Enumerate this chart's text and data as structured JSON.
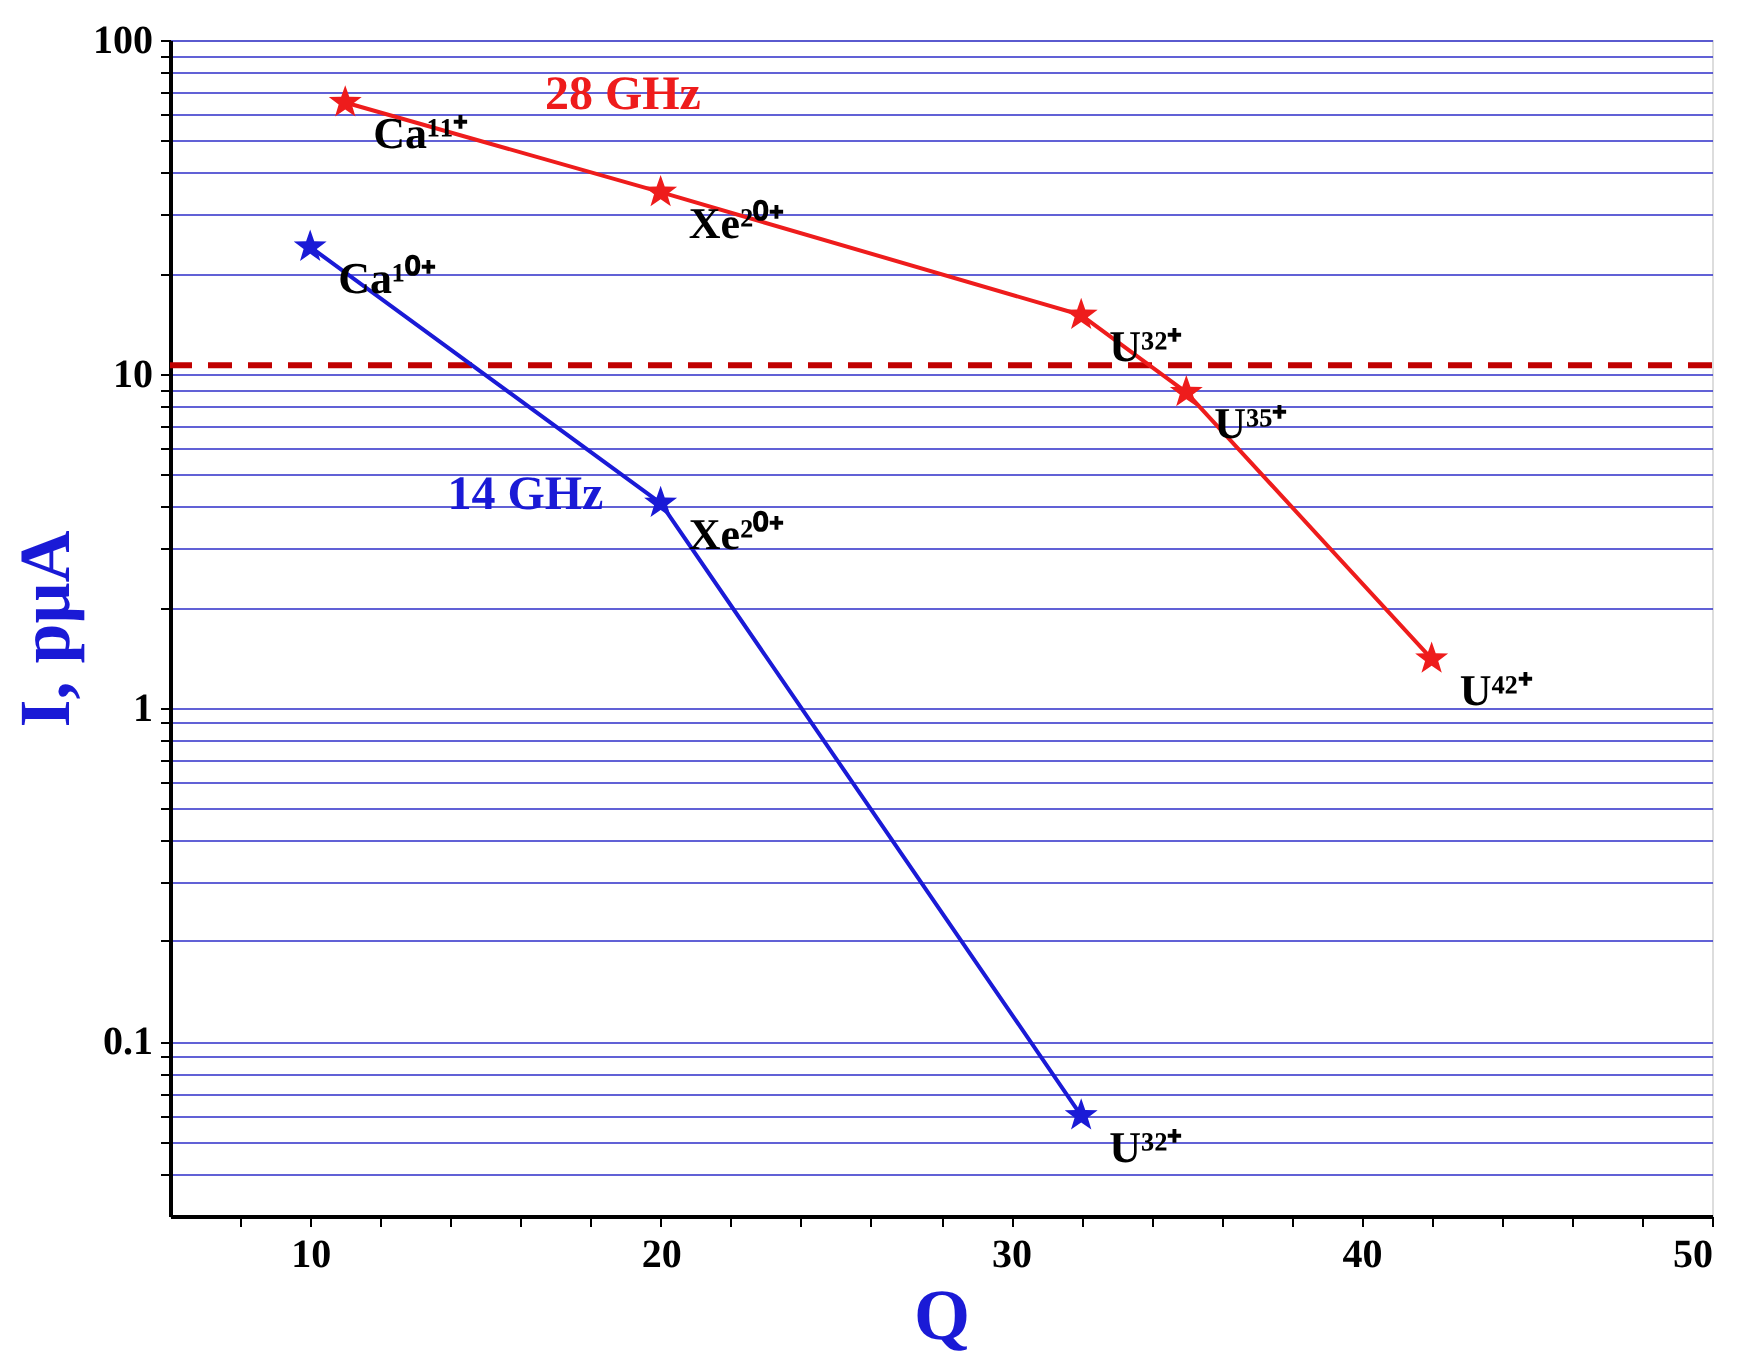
{
  "chart_data": {
    "type": "line",
    "xlabel": "Q",
    "ylabel": "I, pμA",
    "log": "y",
    "grid": "y",
    "marker": "star",
    "line_style": "solid",
    "xlim": [
      6,
      50
    ],
    "xticks": [
      {
        "value": 8,
        "label": null
      },
      10,
      {
        "value": 12,
        "label": null
      },
      {
        "value": 14,
        "label": null
      },
      {
        "value": 16,
        "label": null
      },
      {
        "value": 18,
        "label": null
      },
      20,
      {
        "value": 22,
        "label": null
      },
      {
        "value": 24,
        "label": null
      },
      {
        "value": 26,
        "label": null
      },
      {
        "value": 28,
        "label": null
      },
      30,
      {
        "value": 32,
        "label": null
      },
      {
        "value": 34,
        "label": null
      },
      {
        "value": 36,
        "label": null
      },
      {
        "value": 38,
        "label": null
      },
      40,
      {
        "value": 42,
        "label": null
      },
      {
        "value": 44,
        "label": null
      },
      {
        "value": 46,
        "label": null
      },
      {
        "value": 48,
        "label": null
      },
      50
    ],
    "ylim": [
      0.03,
      100
    ],
    "yticks": [
      {
        "value": 0.04,
        "label": null
      },
      {
        "value": 0.05,
        "label": null
      },
      {
        "value": 0.06,
        "label": null
      },
      {
        "value": 0.07,
        "label": null
      },
      {
        "value": 0.08,
        "label": null
      },
      {
        "value": 0.09,
        "label": null
      },
      0.1,
      {
        "value": 0.2,
        "label": null
      },
      {
        "value": 0.3,
        "label": null
      },
      {
        "value": 0.4,
        "label": null
      },
      {
        "value": 0.5,
        "label": null
      },
      {
        "value": 0.6,
        "label": null
      },
      {
        "value": 0.7,
        "label": null
      },
      {
        "value": 0.8,
        "label": null
      },
      {
        "value": 0.9,
        "label": null
      },
      1,
      {
        "value": 2,
        "label": null
      },
      {
        "value": 3,
        "label": null
      },
      {
        "value": 4,
        "label": null
      },
      {
        "value": 5,
        "label": null
      },
      {
        "value": 6,
        "label": null
      },
      {
        "value": 7,
        "label": null
      },
      {
        "value": 8,
        "label": null
      },
      {
        "value": 9,
        "label": null
      },
      10,
      {
        "value": 20,
        "label": null
      },
      {
        "value": 30,
        "label": null
      },
      {
        "value": 40,
        "label": null
      },
      {
        "value": 50,
        "label": null
      },
      {
        "value": 60,
        "label": null
      },
      {
        "value": 70,
        "label": null
      },
      {
        "value": 80,
        "label": null
      },
      {
        "value": 90,
        "label": null
      },
      100
    ],
    "series": [
      {
        "name": "28 GHz",
        "color": "#ee1c1c",
        "x": [
          11,
          20,
          32,
          35,
          42
        ],
        "values": [
          65,
          35,
          15,
          8.8,
          1.4
        ],
        "value_labels": [
          "Ca¹¹⁺",
          "Xe²⁰⁺",
          "U³²⁺",
          "U³⁵⁺",
          "U⁴²⁺"
        ]
      },
      {
        "name": "14 GHz",
        "color": "#1a1ad6",
        "x": [
          10,
          20,
          32
        ],
        "values": [
          24,
          4.1,
          0.06
        ],
        "value_labels": [
          "Ca¹⁰⁺",
          "Xe²⁰⁺",
          "U³²⁺"
        ]
      }
    ],
    "ref_lines": [
      {
        "axis": "y",
        "value": 10.6,
        "color": "#c00000",
        "line_style": "dashed"
      }
    ]
  }
}
